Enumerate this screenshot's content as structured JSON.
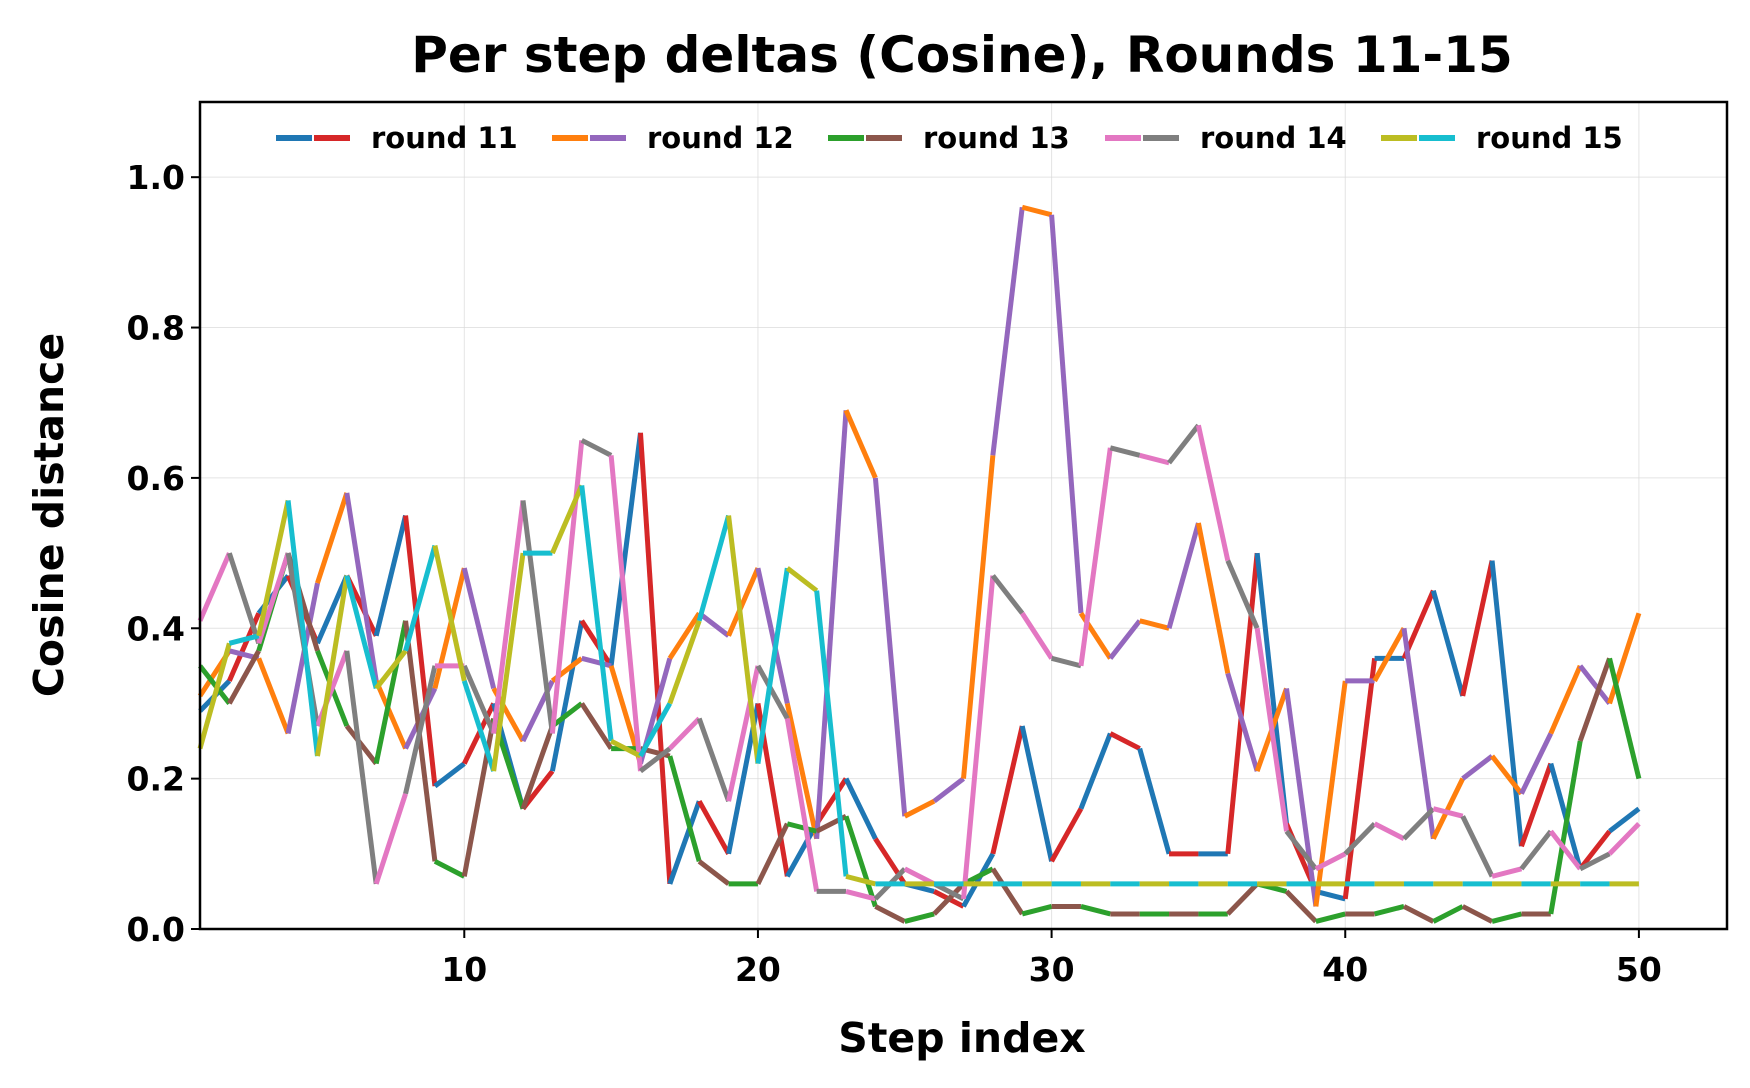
{
  "chart_data": {
    "type": "line",
    "title": "Per step deltas (Cosine), Rounds 11-15",
    "xlabel": "Step index",
    "ylabel": "Cosine distance",
    "xlim": [
      1,
      53
    ],
    "ylim": [
      0,
      1.1
    ],
    "xticks": [
      10,
      20,
      30,
      40,
      50
    ],
    "xtick_labels": [
      "10",
      "20",
      "30",
      "40",
      "50"
    ],
    "yticks": [
      0,
      0.2,
      0.4,
      0.6,
      0.8,
      1.0
    ],
    "ytick_labels": [
      "0.0",
      "0.2",
      "0.4",
      "0.6",
      "0.8",
      "1.0"
    ],
    "grid": true,
    "legend_position": "top-center",
    "x": [
      1,
      2,
      3,
      4,
      5,
      6,
      7,
      8,
      9,
      10,
      11,
      12,
      13,
      14,
      15,
      16,
      17,
      18,
      19,
      20,
      21,
      22,
      23,
      24,
      25,
      26,
      27,
      28,
      29,
      30,
      31,
      32,
      33,
      34,
      35,
      36,
      37,
      38,
      39,
      40,
      41,
      42,
      43,
      44,
      45,
      46,
      47,
      48,
      49,
      50
    ],
    "series": [
      {
        "name": "round 11",
        "colors": [
          "#1f77b4",
          "#d62728"
        ],
        "values": [
          0.29,
          0.33,
          0.42,
          0.47,
          0.38,
          0.47,
          0.39,
          0.55,
          0.19,
          0.22,
          0.3,
          0.16,
          0.21,
          0.41,
          0.35,
          0.66,
          0.06,
          0.17,
          0.1,
          0.3,
          0.07,
          0.14,
          0.2,
          0.12,
          0.06,
          0.05,
          0.03,
          0.1,
          0.27,
          0.09,
          0.16,
          0.26,
          0.24,
          0.1,
          0.1,
          0.1,
          0.5,
          0.14,
          0.05,
          0.04,
          0.36,
          0.36,
          0.45,
          0.31,
          0.49,
          0.11,
          0.22,
          0.08,
          0.13,
          0.16
        ]
      },
      {
        "name": "round 12",
        "colors": [
          "#ff7f0e",
          "#9467bd"
        ],
        "values": [
          0.31,
          0.37,
          0.36,
          0.26,
          0.46,
          0.58,
          0.33,
          0.24,
          0.32,
          0.48,
          0.32,
          0.25,
          0.33,
          0.36,
          0.35,
          0.22,
          0.36,
          0.42,
          0.39,
          0.48,
          0.3,
          0.12,
          0.69,
          0.6,
          0.15,
          0.17,
          0.2,
          0.63,
          0.96,
          0.95,
          0.42,
          0.36,
          0.41,
          0.4,
          0.54,
          0.34,
          0.21,
          0.32,
          0.03,
          0.33,
          0.33,
          0.4,
          0.12,
          0.2,
          0.23,
          0.18,
          0.26,
          0.35,
          0.3,
          0.42
        ]
      },
      {
        "name": "round 13",
        "colors": [
          "#2ca02c",
          "#8c564b"
        ],
        "values": [
          0.35,
          0.3,
          0.37,
          0.5,
          0.37,
          0.27,
          0.22,
          0.41,
          0.09,
          0.07,
          0.28,
          0.16,
          0.27,
          0.3,
          0.24,
          0.24,
          0.23,
          0.09,
          0.06,
          0.06,
          0.14,
          0.13,
          0.15,
          0.03,
          0.01,
          0.02,
          0.06,
          0.08,
          0.02,
          0.03,
          0.03,
          0.02,
          0.02,
          0.02,
          0.02,
          0.02,
          0.06,
          0.05,
          0.01,
          0.02,
          0.02,
          0.03,
          0.01,
          0.03,
          0.01,
          0.02,
          0.02,
          0.25,
          0.36,
          0.2
        ]
      },
      {
        "name": "round 14",
        "colors": [
          "#e377c2",
          "#7f7f7f"
        ],
        "values": [
          0.41,
          0.5,
          0.38,
          0.5,
          0.27,
          0.37,
          0.06,
          0.18,
          0.35,
          0.35,
          0.26,
          0.57,
          0.26,
          0.65,
          0.63,
          0.21,
          0.24,
          0.28,
          0.17,
          0.35,
          0.28,
          0.05,
          0.05,
          0.04,
          0.08,
          0.06,
          0.04,
          0.47,
          0.42,
          0.36,
          0.35,
          0.64,
          0.63,
          0.62,
          0.67,
          0.49,
          0.4,
          0.13,
          0.08,
          0.1,
          0.14,
          0.12,
          0.16,
          0.15,
          0.07,
          0.08,
          0.13,
          0.08,
          0.1,
          0.14
        ]
      },
      {
        "name": "round 15",
        "colors": [
          "#bcbd22",
          "#17becf"
        ],
        "values": [
          0.24,
          0.38,
          0.39,
          0.57,
          0.23,
          0.47,
          0.32,
          0.37,
          0.51,
          0.33,
          0.21,
          0.5,
          0.5,
          0.59,
          0.25,
          0.23,
          0.3,
          0.41,
          0.55,
          0.22,
          0.48,
          0.45,
          0.07,
          0.06,
          0.06,
          0.06,
          0.06,
          0.06,
          0.06,
          0.06,
          0.06,
          0.06,
          0.06,
          0.06,
          0.06,
          0.06,
          0.06,
          0.06,
          0.06,
          0.06,
          0.06,
          0.06,
          0.06,
          0.06,
          0.06,
          0.06,
          0.06,
          0.06,
          0.06,
          0.06
        ]
      }
    ]
  }
}
